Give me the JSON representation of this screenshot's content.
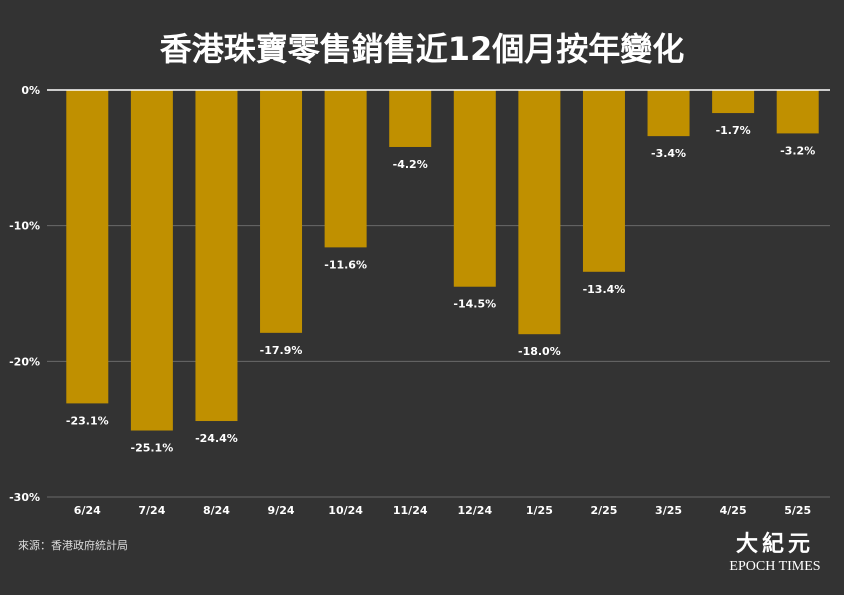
{
  "title": "香港珠寶零售銷售近12個月按年變化",
  "source": "來源：香港政府統計局",
  "logo": {
    "cn": "大紀元",
    "en": "EPOCH TIMES"
  },
  "colors": {
    "background": "#333333",
    "bar": "#c09000",
    "grid": "#6a6a6a",
    "zero_line": "#ffffff",
    "text": "#ffffff"
  },
  "chart_data": {
    "type": "bar",
    "title": "香港珠寶零售銷售近12個月按年變化",
    "xlabel": "",
    "ylabel": "",
    "categories": [
      "6/24",
      "7/24",
      "8/24",
      "9/24",
      "10/24",
      "11/24",
      "12/24",
      "1/25",
      "2/25",
      "3/25",
      "4/25",
      "5/25"
    ],
    "values": [
      -23.1,
      -25.1,
      -24.4,
      -17.9,
      -11.6,
      -4.2,
      -14.5,
      -18.0,
      -13.4,
      -3.4,
      -1.7,
      -3.2
    ],
    "data_labels": [
      "-23.1%",
      "-25.1%",
      "-24.4%",
      "-17.9%",
      "-11.6%",
      "-4.2%",
      "-14.5%",
      "-18.0%",
      "-13.4%",
      "-3.4%",
      "-1.7%",
      "-3.2%"
    ],
    "yticks": [
      0,
      -10,
      -20,
      -30
    ],
    "ytick_labels": [
      "0%",
      "-10%",
      "-20%",
      "-30%"
    ],
    "ylim": [
      -30,
      0
    ],
    "grid": true,
    "legend": "none"
  }
}
